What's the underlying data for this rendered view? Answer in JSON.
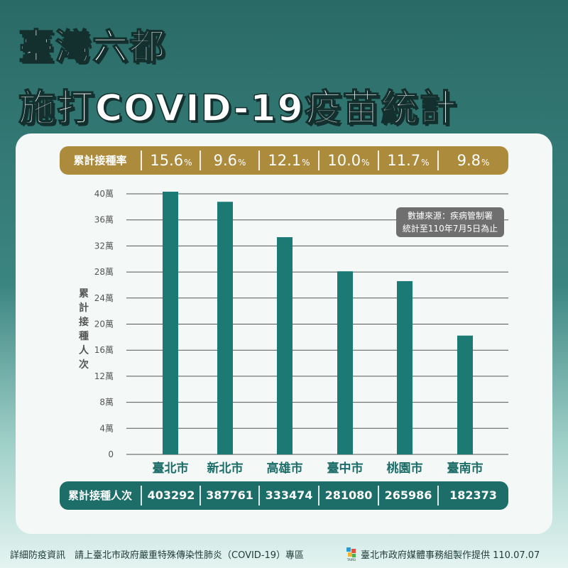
{
  "title_line1": "臺灣六都",
  "title_line2": "施打COVID-19疫苗統計",
  "rate_row": {
    "label": "累計接種率",
    "values": [
      "15.6",
      "9.6",
      "12.1",
      "10.0",
      "11.7",
      "9.8"
    ],
    "unit": "%"
  },
  "count_row": {
    "label": "累計接種人次",
    "values": [
      "403292",
      "387761",
      "333474",
      "281080",
      "265986",
      "182373"
    ]
  },
  "source_note": {
    "line1": "數據來源：疾病管制署",
    "line2": "統計至110年7月5日為止"
  },
  "colors": {
    "bar": "#1b7a73",
    "rate_band": "#ad8b3c",
    "count_band": "#1d6e69",
    "category_text": "#1d6e69"
  },
  "chart_data": {
    "type": "bar",
    "categories": [
      "臺北市",
      "新北市",
      "高雄市",
      "臺中市",
      "桃園市",
      "臺南市"
    ],
    "values": [
      403292,
      387761,
      333474,
      281080,
      265986,
      182373
    ],
    "ylabel": "累計接種人次",
    "ylim": [
      0,
      400000
    ],
    "yticks": [
      0,
      40000,
      80000,
      120000,
      160000,
      200000,
      240000,
      280000,
      320000,
      360000,
      400000
    ],
    "ytick_labels": [
      "0",
      "4萬",
      "8萬",
      "12萬",
      "16萬",
      "20萬",
      "24萬",
      "28萬",
      "32萬",
      "36萬",
      "40萬"
    ],
    "grid": true
  },
  "footer": {
    "left": "詳細防疫資訊　請上臺北市政府嚴重特殊傳染性肺炎（COVID-19）專區",
    "logo_text": "TAIPEI",
    "right": "臺北市政府媒體事務組製作提供 110.07.07"
  }
}
